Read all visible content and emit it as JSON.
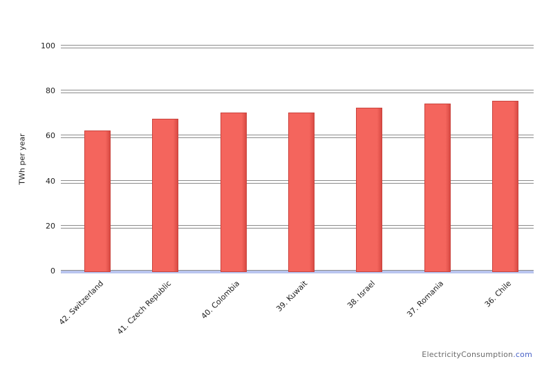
{
  "chart_data": {
    "type": "bar",
    "title": "",
    "xlabel": "",
    "ylabel": "TWh per year",
    "ylim": [
      0,
      100
    ],
    "yticks": [
      0,
      20,
      40,
      60,
      80,
      100
    ],
    "grid": true,
    "legend": false,
    "categories": [
      "42. Switzerland",
      "41. Czech Republic",
      "40. Colombia",
      "39. Kuwait",
      "38. Israel",
      "37. Romania",
      "36. Chile"
    ],
    "values": [
      63,
      68,
      71,
      71,
      73,
      75,
      76
    ],
    "bar_color": "#f4655d",
    "bar_shade_color": "#d94b44",
    "bar_edge_color": "#c9423c",
    "baseline_color": "#b9c5ef"
  },
  "watermark": {
    "site": "ElectricityConsumption",
    "tld": ".com"
  }
}
